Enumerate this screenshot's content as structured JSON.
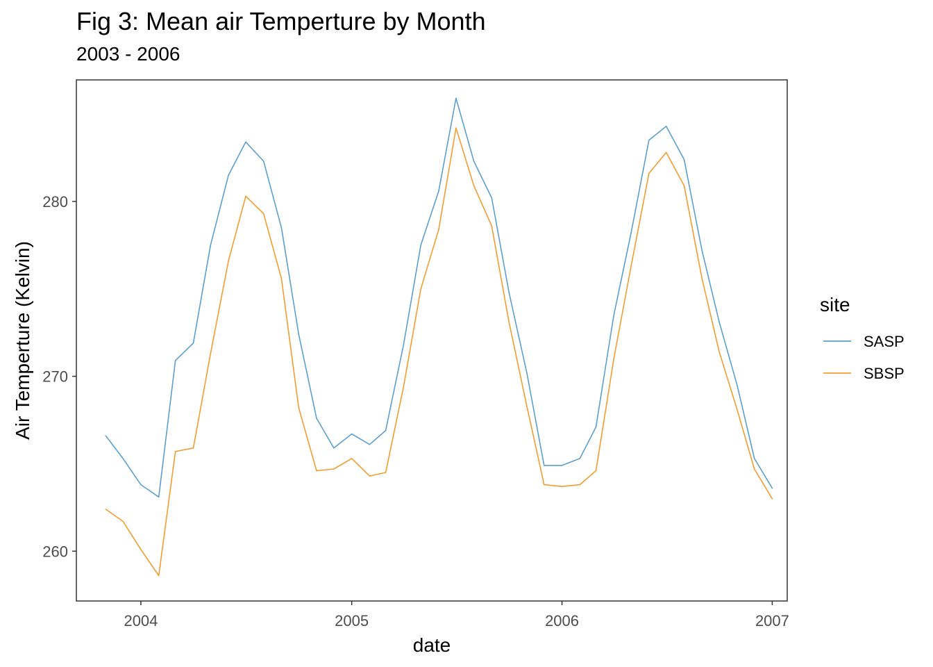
{
  "chart_data": {
    "type": "line",
    "title": "Fig 3: Mean air Temperture by Month",
    "subtitle": "2003 - 2006",
    "xlabel": "date",
    "ylabel": "Air Temperture (Kelvin)",
    "xlim": [
      "2003-09-11",
      "2007-01-27"
    ],
    "ylim": [
      257.15,
      286.95
    ],
    "x_ticks": [
      {
        "date": "2004-01-01",
        "label": "2004"
      },
      {
        "date": "2005-01-01",
        "label": "2005"
      },
      {
        "date": "2006-01-01",
        "label": "2006"
      },
      {
        "date": "2007-01-01",
        "label": "2007"
      }
    ],
    "y_ticks": [
      260,
      270,
      280
    ],
    "grid": false,
    "legend": {
      "title": "site",
      "position": "right"
    },
    "x": [
      "2003-11-01",
      "2003-12-01",
      "2004-01-01",
      "2004-02-01",
      "2004-03-01",
      "2004-04-01",
      "2004-05-01",
      "2004-06-01",
      "2004-07-01",
      "2004-08-01",
      "2004-09-01",
      "2004-10-01",
      "2004-11-01",
      "2004-12-01",
      "2005-01-01",
      "2005-02-01",
      "2005-03-01",
      "2005-04-01",
      "2005-05-01",
      "2005-06-01",
      "2005-07-01",
      "2005-08-01",
      "2005-09-01",
      "2005-10-01",
      "2005-11-01",
      "2005-12-01",
      "2006-01-01",
      "2006-02-01",
      "2006-03-01",
      "2006-04-01",
      "2006-05-01",
      "2006-06-01",
      "2006-07-01",
      "2006-08-01",
      "2006-09-01",
      "2006-10-01",
      "2006-11-01",
      "2006-12-01",
      "2007-01-01"
    ],
    "series": [
      {
        "name": "SASP",
        "color": "#5a9fd0",
        "values": [
          266.6,
          265.3,
          263.8,
          263.1,
          270.9,
          271.9,
          277.5,
          281.5,
          283.4,
          282.3,
          278.5,
          272.4,
          267.6,
          265.9,
          266.7,
          266.1,
          266.9,
          271.8,
          277.5,
          280.6,
          285.9,
          282.3,
          280.2,
          274.8,
          270.2,
          264.9,
          264.9,
          265.3,
          267.1,
          273.5,
          278.2,
          283.5,
          284.3,
          282.4,
          277.2,
          273.1,
          269.5,
          265.3,
          263.6
        ]
      },
      {
        "name": "SBSP",
        "color": "#f39c2f",
        "values": [
          262.4,
          261.7,
          260.1,
          258.6,
          265.7,
          265.9,
          271.3,
          276.6,
          280.3,
          279.3,
          275.6,
          268.2,
          264.6,
          264.7,
          265.3,
          264.3,
          264.5,
          269.4,
          275.0,
          278.4,
          284.2,
          280.9,
          278.6,
          273.1,
          268.3,
          263.8,
          263.7,
          263.8,
          264.6,
          271.0,
          276.3,
          281.6,
          282.8,
          280.9,
          275.6,
          271.4,
          268.1,
          264.7,
          263.0
        ]
      }
    ]
  }
}
